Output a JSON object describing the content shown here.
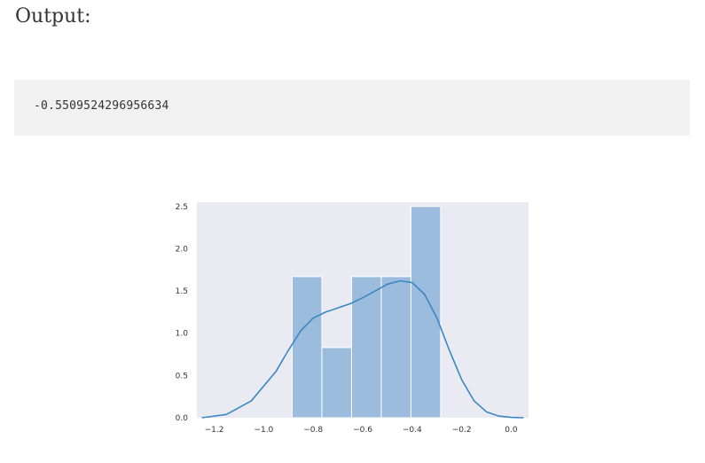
{
  "output": {
    "heading": "Output:",
    "code_value": "-0.5509524296956634"
  },
  "chart_data": {
    "type": "bar",
    "subtype": "histogram-with-kde",
    "title": "",
    "xlabel": "",
    "ylabel": "",
    "xlim": [
      -1.27,
      0.07
    ],
    "ylim": [
      0,
      2.55
    ],
    "x_ticks": [
      -1.2,
      -1.0,
      -0.8,
      -0.6,
      -0.4,
      -0.2,
      0.0
    ],
    "x_tick_labels": [
      "−1.2",
      "−1.0",
      "−0.8",
      "−0.6",
      "−0.4",
      "−0.2",
      "0.0"
    ],
    "y_ticks": [
      0.0,
      0.5,
      1.0,
      1.5,
      2.0,
      2.5
    ],
    "y_tick_labels": [
      "0.0",
      "0.5",
      "1.0",
      "1.5",
      "2.0",
      "2.5"
    ],
    "bins": [
      {
        "x0": -0.885,
        "x1": -0.765,
        "value": 1.67
      },
      {
        "x0": -0.765,
        "x1": -0.645,
        "value": 0.83
      },
      {
        "x0": -0.645,
        "x1": -0.525,
        "value": 1.67
      },
      {
        "x0": -0.525,
        "x1": -0.405,
        "value": 1.67
      },
      {
        "x0": -0.405,
        "x1": -0.285,
        "value": 2.5
      }
    ],
    "kde": {
      "x": [
        -1.25,
        -1.15,
        -1.05,
        -0.95,
        -0.9,
        -0.85,
        -0.8,
        -0.75,
        -0.7,
        -0.65,
        -0.6,
        -0.55,
        -0.5,
        -0.45,
        -0.4,
        -0.35,
        -0.3,
        -0.25,
        -0.2,
        -0.15,
        -0.1,
        -0.05,
        0.0,
        0.05
      ],
      "y": [
        0.0,
        0.04,
        0.2,
        0.55,
        0.8,
        1.03,
        1.18,
        1.25,
        1.3,
        1.35,
        1.42,
        1.5,
        1.58,
        1.62,
        1.6,
        1.46,
        1.18,
        0.8,
        0.45,
        0.2,
        0.07,
        0.02,
        0.005,
        0.0
      ]
    },
    "grid": false,
    "colors": {
      "background": "#eaeaf2",
      "bar_fill": "#9bbcdc",
      "bar_edge": "#ffffff",
      "kde_line": "#3a87c4"
    }
  }
}
